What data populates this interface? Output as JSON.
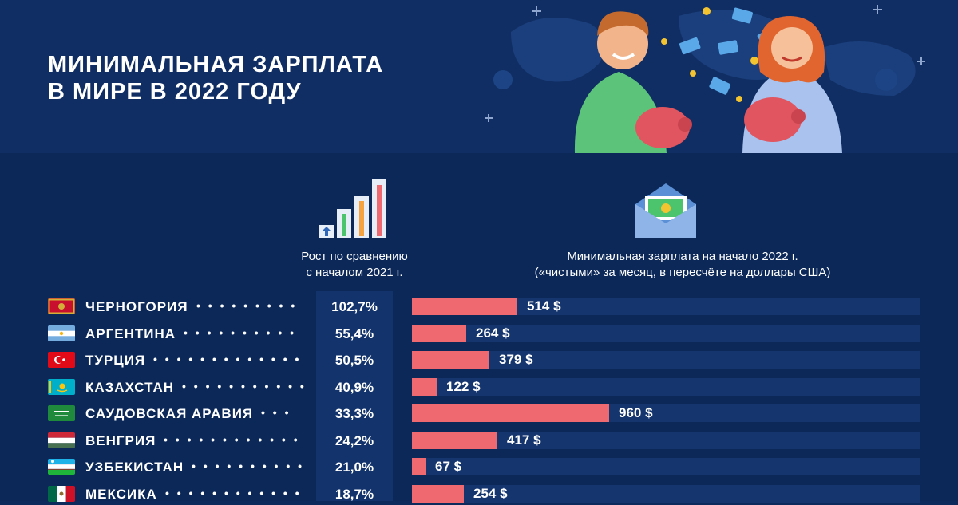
{
  "title": {
    "line1": "МИНИМАЛЬНАЯ ЗАРПЛАТА",
    "line2": "В МИРЕ В 2022 ГОДУ"
  },
  "captions": {
    "growth_line1": "Рост по сравнению",
    "growth_line2": "с началом 2021 г.",
    "wage_line1": "Минимальная зарплата на начало 2022 г.",
    "wage_line2": "(«чистыми» за месяц, в пересчёте на доллары США)"
  },
  "colors": {
    "background": "#0b2858",
    "header": "#102e63",
    "bar": "#ef6a70",
    "track": "#15356e"
  },
  "chart_data": {
    "type": "bar",
    "orientation": "horizontal",
    "unit": "$",
    "categories": [
      "ЧЕРНОГОРИЯ",
      "АРГЕНТИНА",
      "ТУРЦИЯ",
      "КАЗАХСТАН",
      "САУДОВСКАЯ АРАВИЯ",
      "ВЕНГРИЯ",
      "УЗБЕКИСТАН",
      "МЕКСИКА"
    ],
    "values": [
      514,
      264,
      379,
      122,
      960,
      417,
      67,
      254
    ],
    "value_labels": [
      "514 $",
      "264 $",
      "379 $",
      "122 $",
      "960 $",
      "417 $",
      "67 $",
      "254 $"
    ],
    "growth_labels": [
      "102,7%",
      "55,4%",
      "50,5%",
      "40,9%",
      "33,3%",
      "24,2%",
      "21,0%",
      "18,7%"
    ],
    "growth_values": [
      102.7,
      55.4,
      50.5,
      40.9,
      33.3,
      24.2,
      21.0,
      18.7
    ],
    "flags": [
      "montenegro-flag",
      "argentina-flag",
      "turkey-flag",
      "kazakhstan-flag",
      "saudi-arabia-flag",
      "hungary-flag",
      "uzbekistan-flag",
      "mexico-flag"
    ],
    "xlim": [
      0,
      2475
    ]
  }
}
